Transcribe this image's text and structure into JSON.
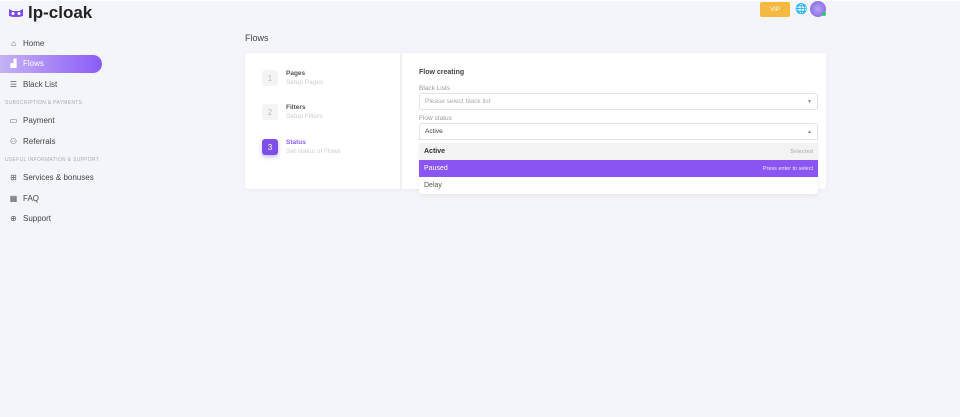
{
  "app": {
    "name": "lp-cloak"
  },
  "header": {
    "vip_label": "VIP",
    "globe_icon": "globe-icon"
  },
  "sidebar": {
    "items": [
      {
        "label": "Home",
        "icon": "home-icon"
      },
      {
        "label": "Flows",
        "icon": "flows-icon",
        "active": true
      },
      {
        "label": "Black List",
        "icon": "list-icon"
      }
    ],
    "section1": "SUBSCRIPTION & PAYMENTS",
    "items2": [
      {
        "label": "Payment",
        "icon": "card-icon"
      },
      {
        "label": "Referrals",
        "icon": "user-plus-icon"
      }
    ],
    "section2": "USEFUL INFORMATION & SUPPORT",
    "items3": [
      {
        "label": "Services & bonuses",
        "icon": "gift-icon"
      },
      {
        "label": "FAQ",
        "icon": "faq-icon"
      },
      {
        "label": "Support",
        "icon": "lifebuoy-icon"
      }
    ]
  },
  "page": {
    "title": "Flows"
  },
  "steps": [
    {
      "num": "1",
      "title": "Pages",
      "subtitle": "Setup Pages"
    },
    {
      "num": "2",
      "title": "Filters",
      "subtitle": "Setup Filters"
    },
    {
      "num": "3",
      "title": "Status",
      "subtitle": "Set status of Flows",
      "active": true
    }
  ],
  "form": {
    "title": "Flow creating",
    "black_lists_label": "Black Lists",
    "black_lists_placeholder": "Please select black list",
    "flow_status_label": "Flow status",
    "flow_status_value": "Active"
  },
  "dropdown": {
    "options": [
      {
        "label": "Active",
        "hint": "Selected"
      },
      {
        "label": "Paused",
        "hint": "Press enter to select"
      },
      {
        "label": "Delay",
        "hint": ""
      }
    ]
  },
  "colors": {
    "accent": "#8b55f3",
    "vip": "#f5b942"
  }
}
